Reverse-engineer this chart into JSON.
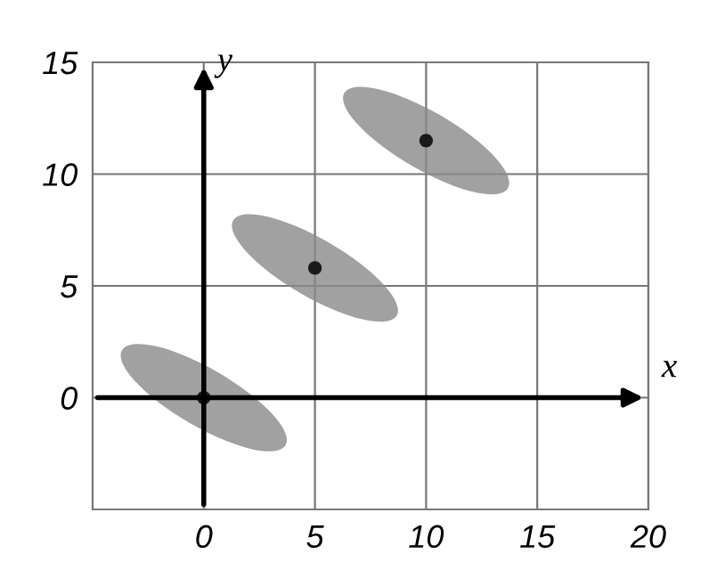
{
  "chart_data": {
    "type": "scatter",
    "xlabel": "x",
    "ylabel": "y",
    "series": [
      {
        "color": "#1a1a1a",
        "x": [
          0,
          5,
          10
        ],
        "values": [
          0,
          5.8,
          11.5
        ]
      }
    ],
    "xlim": [
      -5,
      20
    ],
    "ylim": [
      -5,
      15
    ],
    "xticks": [
      0,
      5,
      10,
      15,
      20
    ],
    "yticks": [
      0,
      5,
      10,
      15
    ],
    "grid": true,
    "marker": "circle"
  }
}
